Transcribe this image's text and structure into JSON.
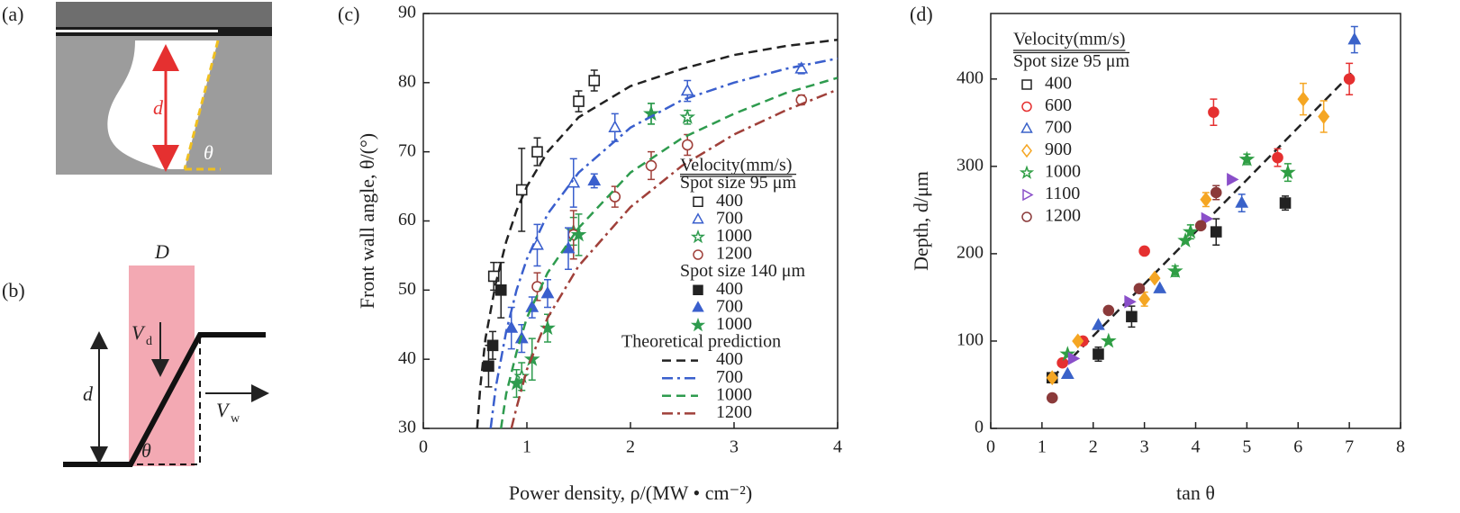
{
  "figure": {
    "panel_a": {
      "label": "(a)",
      "depth_label": "d",
      "angle_label": "θ"
    },
    "panel_b": {
      "label": "(b)",
      "width_label": "D",
      "depth_label": "d",
      "angle_label": "θ",
      "drill_velocity_label": "V",
      "drill_velocity_subscript": "d",
      "weld_velocity_label": "V",
      "weld_velocity_subscript": "w"
    }
  },
  "chart_data": [
    {
      "type": "scatter",
      "panel": "(c)",
      "x_label": "Power density, ρ/(MW • cm⁻²)",
      "y_label": "Front wall angle, θ/(°)",
      "xlim": [
        0,
        4
      ],
      "xticks": [
        0,
        1,
        2,
        3,
        4
      ],
      "ylim": [
        30,
        90
      ],
      "yticks": [
        30,
        40,
        50,
        60,
        70,
        80,
        90
      ],
      "legend": "center right",
      "legend_title": "Velocity(mm/s)",
      "legend_groups": [
        "Spot size 95 μm",
        "Spot size 140 μm",
        "Theoretical prediction"
      ],
      "series": [
        {
          "name": "400",
          "group": 0,
          "color": "#222222",
          "marker": "square",
          "filled": false,
          "x": [
            0.68,
            0.95,
            1.1,
            1.5,
            1.65
          ],
          "values": [
            52,
            64.5,
            70,
            77.3,
            80.3
          ],
          "errors": [
            2,
            6,
            2,
            1.5,
            1.5
          ]
        },
        {
          "name": "700",
          "group": 0,
          "color": "#3a5fcd",
          "marker": "triangle",
          "filled": false,
          "x": [
            1.1,
            1.45,
            1.85,
            2.55,
            3.65
          ],
          "values": [
            56.5,
            65.5,
            73.5,
            78.8,
            82
          ],
          "errors": [
            3,
            3.5,
            2,
            1.5,
            0.7
          ]
        },
        {
          "name": "1000",
          "group": 0,
          "color": "#2e9b4e",
          "marker": "star",
          "filled": false,
          "x": [
            0.95,
            1.45,
            2.2,
            2.55
          ],
          "values": [
            37.5,
            58.5,
            75.5,
            75
          ],
          "errors": [
            2,
            2,
            1.5,
            1
          ]
        },
        {
          "name": "1200",
          "group": 0,
          "color": "#a0403a",
          "marker": "circle",
          "filled": false,
          "x": [
            1.1,
            1.45,
            1.85,
            2.2,
            2.55,
            3.65
          ],
          "values": [
            50.5,
            58,
            63.5,
            68,
            71,
            77.5
          ],
          "errors": [
            2,
            3.5,
            1.5,
            2,
            1.5,
            0.7
          ]
        },
        {
          "name": "400",
          "group": 1,
          "color": "#222222",
          "marker": "square",
          "filled": true,
          "x": [
            0.63,
            0.67,
            0.75
          ],
          "values": [
            39,
            42,
            50
          ],
          "errors": [
            3,
            2,
            4
          ]
        },
        {
          "name": "700",
          "group": 1,
          "color": "#3a5fcd",
          "marker": "triangle",
          "filled": true,
          "x": [
            0.85,
            0.95,
            1.05,
            1.2,
            1.4,
            1.65
          ],
          "values": [
            44.5,
            43,
            47.5,
            49.5,
            56,
            65.8
          ],
          "errors": [
            3,
            2,
            1.5,
            2,
            3,
            1
          ]
        },
        {
          "name": "1000",
          "group": 1,
          "color": "#2e9b4e",
          "marker": "star",
          "filled": true,
          "x": [
            0.9,
            1.05,
            1.2,
            1.5,
            2.2
          ],
          "values": [
            36.5,
            40,
            44.5,
            58,
            75.5
          ],
          "errors": [
            2,
            3,
            2,
            3,
            1.5
          ]
        },
        {
          "name": "400",
          "group": 2,
          "color": "#222222",
          "dash": "dashed",
          "x": [
            0.52,
            0.55,
            0.6,
            0.7,
            0.8,
            0.9,
            1,
            1.2,
            1.5,
            2,
            2.5,
            3,
            3.5,
            4
          ],
          "values": [
            30,
            36,
            43,
            51,
            57,
            61.5,
            65,
            70,
            75,
            79.5,
            82,
            84,
            85.3,
            86.2
          ]
        },
        {
          "name": "700",
          "group": 2,
          "color": "#3a5fcd",
          "dash": "dashdot",
          "x": [
            0.65,
            0.7,
            0.8,
            0.9,
            1,
            1.2,
            1.5,
            2,
            2.5,
            3,
            3.5,
            4
          ],
          "values": [
            30,
            36,
            44,
            50,
            54.5,
            61,
            67,
            73.5,
            77.5,
            80,
            82,
            83.5
          ]
        },
        {
          "name": "1000",
          "group": 2,
          "color": "#2e9b4e",
          "dash": "dashed",
          "x": [
            0.75,
            0.8,
            0.9,
            1,
            1.2,
            1.5,
            2,
            2.5,
            3,
            3.5,
            4
          ],
          "values": [
            30,
            35,
            41,
            46,
            52.5,
            59,
            67,
            72,
            75.5,
            78.5,
            80.7
          ]
        },
        {
          "name": "1200",
          "group": 2,
          "color": "#a0403a",
          "dash": "dashdot",
          "x": [
            0.85,
            0.9,
            1,
            1.2,
            1.5,
            2,
            2.5,
            3,
            3.5,
            4
          ],
          "values": [
            30,
            33,
            38.5,
            46,
            53.5,
            62,
            68,
            72.5,
            76,
            79
          ]
        }
      ]
    },
    {
      "type": "scatter",
      "panel": "(d)",
      "x_label": "tan θ",
      "y_label": "Depth, d/μm",
      "xlim": [
        0,
        8
      ],
      "xticks": [
        0,
        1,
        2,
        3,
        4,
        5,
        6,
        7,
        8
      ],
      "ylim": [
        0,
        475
      ],
      "yticks": [
        0,
        100,
        200,
        300,
        400
      ],
      "legend": "upper left",
      "legend_title": "Velocity(mm/s)",
      "legend_groups": [
        "Spot size 95 μm"
      ],
      "fit_line": {
        "color": "#222222",
        "dash": "dashed",
        "x": [
          1.2,
          7.1
        ],
        "values": [
          58,
          410
        ]
      },
      "series": [
        {
          "name": "400",
          "group": 0,
          "color": "#222222",
          "marker": "square",
          "filled": true,
          "x": [
            1.2,
            2.1,
            2.75,
            4.4,
            5.75
          ],
          "values": [
            58,
            85,
            128,
            225,
            258
          ],
          "errors": [
            null,
            8,
            12,
            15,
            8
          ]
        },
        {
          "name": "600",
          "group": 0,
          "color": "#e53030",
          "marker": "circle",
          "filled": true,
          "x": [
            1.4,
            1.8,
            3,
            4.35,
            5.6,
            7
          ],
          "values": [
            75,
            100,
            203,
            362,
            310,
            400
          ],
          "errors": [
            null,
            null,
            null,
            15,
            10,
            18
          ]
        },
        {
          "name": "700",
          "group": 0,
          "color": "#3a62c9",
          "marker": "triangle",
          "filled": true,
          "x": [
            1.5,
            2.1,
            3.3,
            4.9,
            7.1
          ],
          "values": [
            62,
            118,
            160,
            258,
            445
          ],
          "errors": [
            null,
            null,
            null,
            10,
            15
          ]
        },
        {
          "name": "900",
          "group": 0,
          "color": "#f5a623",
          "marker": "diamond",
          "filled": true,
          "x": [
            1.2,
            1.7,
            3,
            3.2,
            4.2,
            6.1,
            6.5
          ],
          "values": [
            58,
            100,
            148,
            172,
            262,
            377,
            357
          ],
          "errors": [
            null,
            null,
            8,
            null,
            8,
            18,
            18
          ]
        },
        {
          "name": "1000",
          "group": 0,
          "color": "#2f9e44",
          "marker": "star",
          "filled": true,
          "x": [
            1.5,
            2.3,
            3.6,
            3.8,
            3.9,
            5,
            5.8
          ],
          "values": [
            85,
            100,
            180,
            215,
            225,
            308,
            293
          ],
          "errors": [
            null,
            null,
            6,
            null,
            8,
            6,
            10
          ]
        },
        {
          "name": "1100",
          "group": 0,
          "color": "#8a4fc9",
          "marker": "triangle-right",
          "filled": true,
          "x": [
            1.6,
            2.7,
            4.2,
            4.7
          ],
          "values": [
            80,
            145,
            240,
            285
          ],
          "errors": [
            null,
            null,
            null,
            null
          ]
        },
        {
          "name": "1200",
          "group": 0,
          "color": "#8b3a3a",
          "marker": "circle",
          "filled": true,
          "x": [
            1.2,
            2.3,
            2.9,
            4.1,
            4.4
          ],
          "values": [
            35,
            135,
            160,
            232,
            270
          ],
          "errors": [
            null,
            null,
            null,
            null,
            8
          ]
        }
      ]
    }
  ]
}
